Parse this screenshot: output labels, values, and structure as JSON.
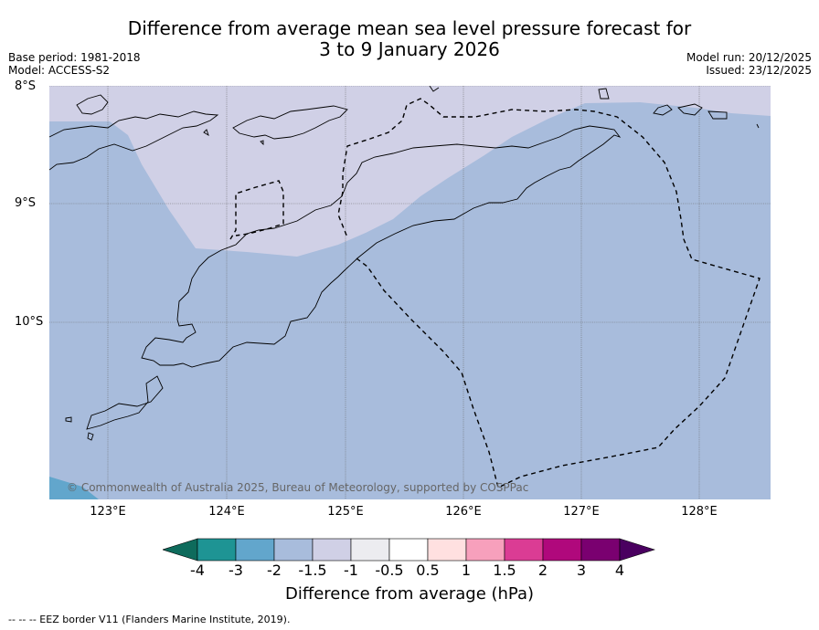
{
  "title_line1": "Difference from average mean sea level pressure forecast for",
  "title_line2": "3 to 9 January 2026",
  "meta": {
    "base_period": "Base period: 1981-2018",
    "model": "Model: ACCESS-S2",
    "model_run": "Model run: 20/12/2025",
    "issued": "Issued: 23/12/2025"
  },
  "lat_labels": [
    "8°S",
    "9°S",
    "10°S"
  ],
  "lon_labels": [
    "123°E",
    "124°E",
    "125°E",
    "126°E",
    "127°E",
    "128°E"
  ],
  "copyright": "© Commonwealth of Australia 2025, Bureau of Meteorology, supported by COSPPac",
  "colorbar": {
    "label": "Difference from average (hPa)",
    "ticks": [
      "-4",
      "-3",
      "-2",
      "-1.5",
      "-1",
      "-0.5",
      "0.5",
      "1",
      "1.5",
      "2",
      "3",
      "4"
    ],
    "colors": [
      "#0e6b5c",
      "#1e9494",
      "#62a6cc",
      "#a8bcdc",
      "#d0d0e6",
      "#ececf0",
      "#ffffff",
      "#ffe0e0",
      "#f7a0bc",
      "#db3c94",
      "#b0087c",
      "#7a0070",
      "#4a0060"
    ]
  },
  "map_colors": {
    "band_minus2_minus1_5": "#a8bcdc",
    "band_minus1_5_minus1": "#d0d0e6",
    "band_minus3_minus2": "#62a6cc"
  },
  "eez_note": "-- -- -- EEZ border V11 (Flanders Marine Institute, 2019)."
}
